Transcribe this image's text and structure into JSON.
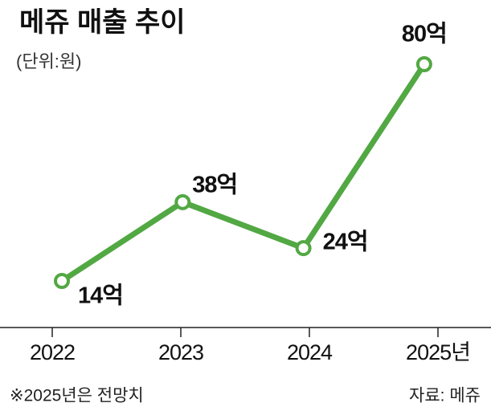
{
  "chart_data": {
    "type": "line",
    "title": "메쥬 매출 추이",
    "subtitle": "(단위:원)",
    "categories": [
      "2022",
      "2023",
      "2024",
      "2025년"
    ],
    "values": [
      14,
      38,
      24,
      80
    ],
    "value_labels": [
      "14억",
      "38억",
      "24억",
      "80억"
    ],
    "color": "#52a843",
    "note": "※2025년은 전망치",
    "source": "자료: 메쥬"
  }
}
